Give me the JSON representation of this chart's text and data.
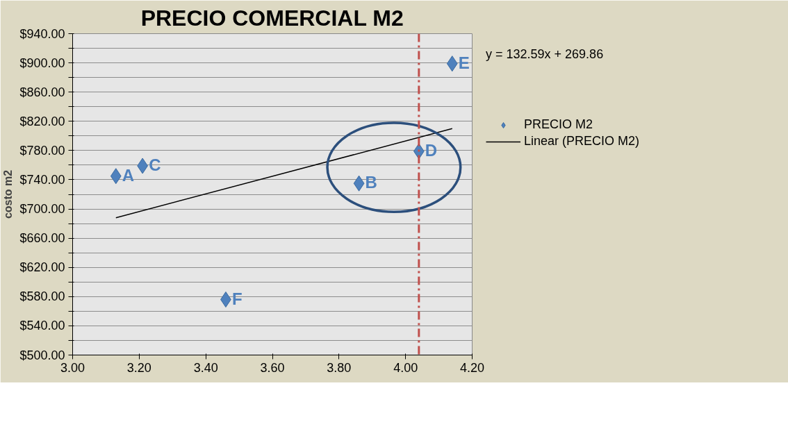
{
  "chart_data": {
    "type": "scatter",
    "title": "PRECIO COMERCIAL M2",
    "ylabel": "costo m2",
    "series": [
      {
        "name": "PRECIO M2",
        "color": "#4f81bd",
        "x": [
          3.13,
          3.21,
          3.46,
          3.86,
          4.04,
          4.14
        ],
        "values": [
          745,
          759,
          576,
          735,
          779,
          899
        ]
      },
      {
        "name": "Linear (PRECIO M2)",
        "type": "line",
        "marker": "none",
        "color": "#000000",
        "x": [
          3.13,
          4.14
        ],
        "values": [
          688,
          810
        ]
      }
    ],
    "marker": "diamond",
    "xlim": [
      3.0,
      4.2
    ],
    "xticks": [
      {
        "value": 3.0,
        "label": "3.00"
      },
      {
        "value": 3.2,
        "label": "3.20"
      },
      {
        "value": 3.4,
        "label": "3.40"
      },
      {
        "value": 3.6,
        "label": "3.60"
      },
      {
        "value": 3.8,
        "label": "3.80"
      },
      {
        "value": 4.0,
        "label": "4.00"
      },
      {
        "value": 4.2,
        "label": "4.20"
      }
    ],
    "ylim": [
      500,
      940
    ],
    "yticks": [
      {
        "value": 500,
        "label": "$500.00"
      },
      {
        "value": 520,
        "label": null
      },
      {
        "value": 540,
        "label": "$540.00"
      },
      {
        "value": 560,
        "label": null
      },
      {
        "value": 580,
        "label": "$580.00"
      },
      {
        "value": 600,
        "label": null
      },
      {
        "value": 620,
        "label": "$620.00"
      },
      {
        "value": 640,
        "label": null
      },
      {
        "value": 660,
        "label": "$660.00"
      },
      {
        "value": 680,
        "label": null
      },
      {
        "value": 700,
        "label": "$700.00"
      },
      {
        "value": 720,
        "label": null
      },
      {
        "value": 740,
        "label": "$740.00"
      },
      {
        "value": 760,
        "label": null
      },
      {
        "value": 780,
        "label": "$780.00"
      },
      {
        "value": 800,
        "label": null
      },
      {
        "value": 820,
        "label": "$820.00"
      },
      {
        "value": 840,
        "label": null
      },
      {
        "value": 860,
        "label": "$860.00"
      },
      {
        "value": 880,
        "label": null
      },
      {
        "value": 900,
        "label": "$900.00"
      },
      {
        "value": 920,
        "label": null
      },
      {
        "value": 940,
        "label": "$940.00"
      }
    ],
    "grid": "y",
    "legend": "right",
    "ref_lines": [
      {
        "axis": "x",
        "value": 4.04,
        "label": null,
        "color": "#c0504d",
        "line_style": "dashdot"
      }
    ],
    "annotations": [
      {
        "text": "A",
        "x": 3.13,
        "y": 745
      },
      {
        "text": "C",
        "x": 3.21,
        "y": 759
      },
      {
        "text": "F",
        "x": 3.46,
        "y": 576
      },
      {
        "text": "B",
        "x": 3.86,
        "y": 735
      },
      {
        "text": "D",
        "x": 4.04,
        "y": 779
      },
      {
        "text": "E",
        "x": 4.14,
        "y": 899
      },
      "y = 132.59x + 269.86"
    ]
  }
}
